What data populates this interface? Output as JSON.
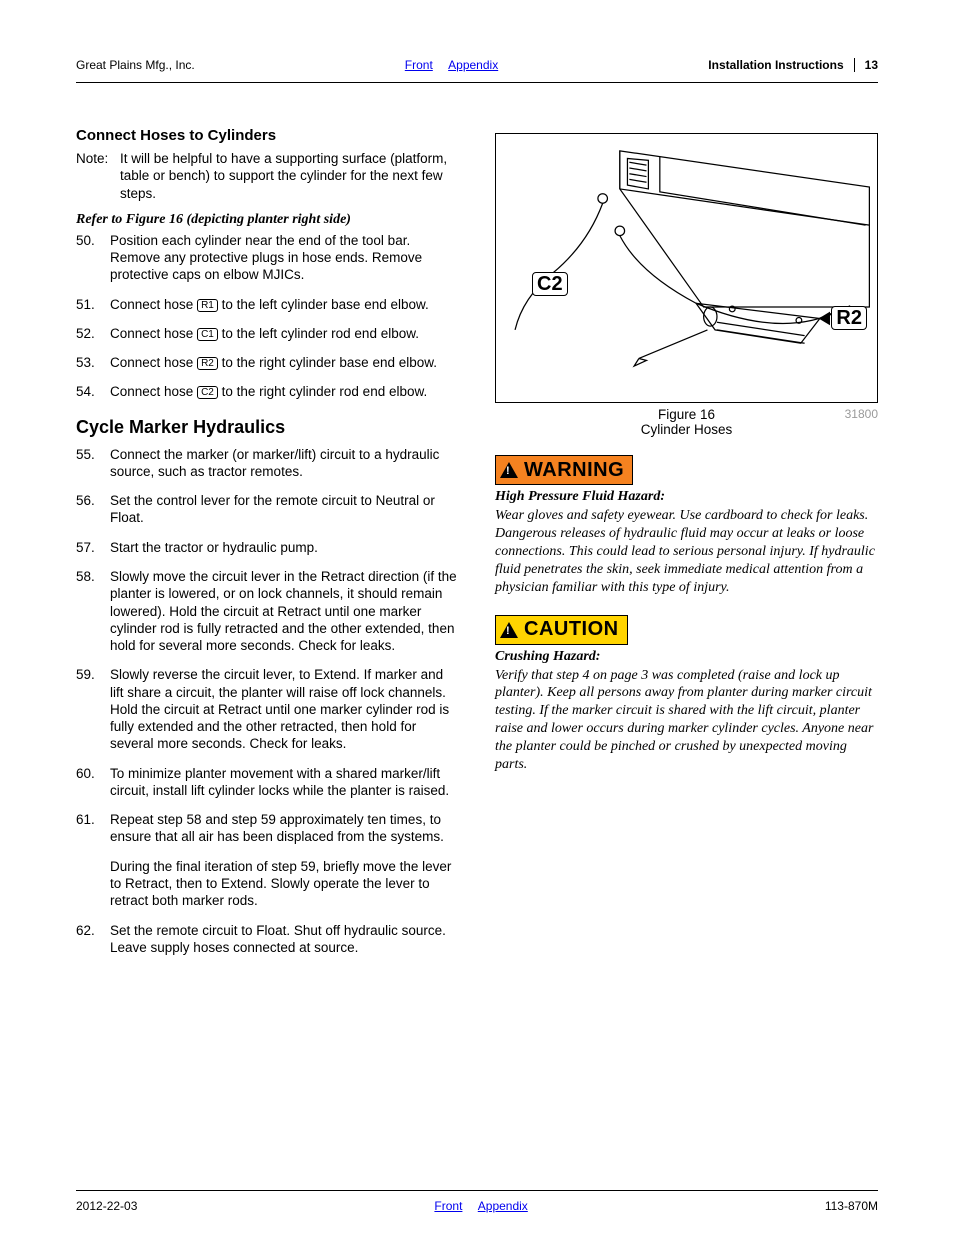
{
  "header": {
    "company": "Great Plains Mfg., Inc.",
    "nav_front": "Front",
    "nav_appendix": "Appendix",
    "doc_section": "Installation Instructions",
    "page_number": "13"
  },
  "section1": {
    "title": "Connect Hoses to Cylinders",
    "note_label": "Note:",
    "note_text": "It will be helpful to have a supporting surface (platform, table or bench) to support the cylinder for the next few steps.",
    "refer": "Refer to Figure 16 (depicting planter right side)"
  },
  "steps_a": [
    {
      "n": "50.",
      "t": "Position each cylinder near the end of the tool bar. Remove any protective plugs in hose ends. Remove protective caps on elbow MJICs."
    },
    {
      "n": "51.",
      "pre": "Connect hose ",
      "tag": "R1",
      "post": " to the left cylinder base end elbow."
    },
    {
      "n": "52.",
      "pre": "Connect hose ",
      "tag": "C1",
      "post": " to the left cylinder rod end elbow."
    },
    {
      "n": "53.",
      "pre": "Connect hose ",
      "tag": "R2",
      "post": " to the right cylinder base end elbow."
    },
    {
      "n": "54.",
      "pre": "Connect hose ",
      "tag": "C2",
      "post": " to the right cylinder rod end elbow."
    }
  ],
  "section2": {
    "title": "Cycle Marker Hydraulics"
  },
  "steps_b": [
    {
      "n": "55.",
      "t": "Connect the marker (or marker/lift) circuit to a hydraulic source, such as tractor remotes."
    },
    {
      "n": "56.",
      "t": "Set the control lever for the remote circuit to Neutral or Float."
    },
    {
      "n": "57.",
      "t": "Start the tractor or hydraulic pump."
    },
    {
      "n": "58.",
      "t": "Slowly move the circuit lever in the Retract direction (if the planter is lowered, or on lock channels, it should remain lowered). Hold the circuit at Retract until one marker cylinder rod is fully retracted and the other extended, then hold for several more seconds. Check for leaks."
    },
    {
      "n": "59.",
      "t": "Slowly reverse the circuit lever, to Extend. If marker and lift share a circuit, the planter will raise off lock channels. Hold the circuit at Retract until one marker cylinder rod is fully extended and the other retracted, then hold for several more seconds. Check for leaks."
    },
    {
      "n": "60.",
      "t": "To minimize planter movement with a shared marker/lift circuit, install lift cylinder locks while the planter is raised."
    },
    {
      "n": "61.",
      "t": "Repeat step 58 and step 59 approximately ten times, to ensure that all air has been displaced from the systems.",
      "t2": "During the final iteration of step 59, briefly move the lever to Retract, then to Extend. Slowly operate the lever to retract both marker rods."
    },
    {
      "n": "62.",
      "t": " Set the remote circuit to Float. Shut off hydraulic source. Leave supply hoses connected at source."
    }
  ],
  "figure": {
    "label": "Figure 16",
    "caption": "Cylinder Hoses",
    "ref": "31800",
    "callout_c2": "C2",
    "callout_r2": "R2"
  },
  "warning": {
    "badge": "WARNING",
    "title": "High Pressure Fluid Hazard:",
    "body": "Wear gloves and safety eyewear. Use cardboard to check for leaks. Dangerous releases of hydraulic fluid may occur at leaks or loose connections. This could lead to serious personal injury. If hydraulic fluid penetrates the skin, seek immediate medical attention from a physician familiar with this type of injury."
  },
  "caution": {
    "badge": "CAUTION",
    "title": "Crushing Hazard:",
    "body": "Verify that step 4 on page 3 was completed (raise and lock up planter). Keep all persons away from planter during marker circuit testing. If the marker circuit is shared with the lift circuit, planter raise and lower occurs during marker cylinder cycles. Anyone near the planter could be pinched or crushed by unexpected moving parts."
  },
  "footer": {
    "date": "2012-22-03",
    "nav_front": "Front",
    "nav_appendix": "Appendix",
    "doc_code": "113-870M"
  },
  "colors": {
    "link": "#0000ee",
    "warn_bg": "#f58220",
    "caution_bg": "#ffd400",
    "fig_ref": "#9a9a9a"
  }
}
